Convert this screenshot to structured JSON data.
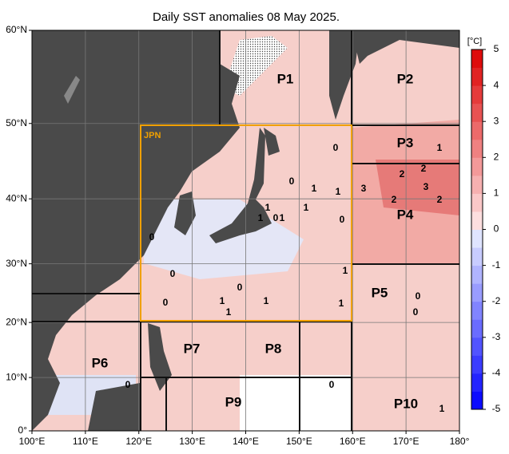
{
  "map": {
    "title": "Daily SST anomalies 08 May 2025.",
    "lon_lim": [
      100,
      180
    ],
    "lat_lim": [
      0,
      60
    ],
    "lon_ticks": [
      {
        "value": 100,
        "label": "100°E"
      },
      {
        "value": 110,
        "label": "110°E"
      },
      {
        "value": 120,
        "label": "120°E"
      },
      {
        "value": 130,
        "label": "130°E"
      },
      {
        "value": 140,
        "label": "140°E"
      },
      {
        "value": 150,
        "label": "150°E"
      },
      {
        "value": 160,
        "label": "160°E"
      },
      {
        "value": 170,
        "label": "170°E"
      },
      {
        "value": 180,
        "label": "180°"
      }
    ],
    "lat_ticks": [
      {
        "value": 60,
        "label": "60°N"
      },
      {
        "value": 50,
        "label": "50°N"
      },
      {
        "value": 40,
        "label": "40°N"
      },
      {
        "value": 30,
        "label": "30°N"
      },
      {
        "value": 20,
        "label": "20°N"
      },
      {
        "value": 10,
        "label": "10°N"
      },
      {
        "value": 0,
        "label": "0°"
      }
    ],
    "grid": true,
    "jpn_label": "JPN",
    "regions": [
      "P1",
      "P2",
      "P3",
      "P4",
      "P5",
      "P6",
      "P7",
      "P8",
      "P9",
      "P10"
    ],
    "contour_labels": [
      0,
      1,
      3,
      2,
      2,
      3,
      2,
      2,
      1,
      0,
      1,
      1,
      1,
      0,
      1,
      0,
      0,
      1,
      0,
      0,
      1,
      1,
      1,
      0,
      1,
      1,
      0,
      0,
      0,
      0,
      1
    ],
    "colorbar": {
      "unit": "[°C]",
      "lim": [
        -5,
        5
      ],
      "ticks": [
        5,
        4,
        3,
        2,
        1,
        0,
        -1,
        -2,
        -3,
        -4,
        -5
      ]
    }
  }
}
